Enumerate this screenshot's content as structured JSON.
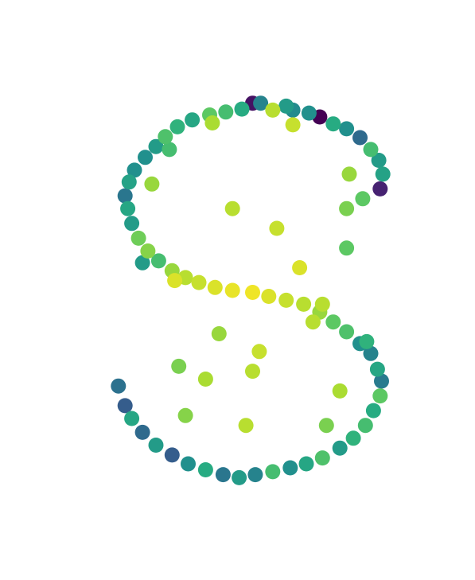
{
  "chart_data": {
    "type": "scatter",
    "title": "",
    "xlabel": "",
    "ylabel": "",
    "grid": false,
    "axes_visible": false,
    "legend": "none",
    "colormap": "viridis",
    "xlim": [
      -1.2,
      1.2
    ],
    "ylim": [
      -2.2,
      2.2
    ],
    "color_range": [
      0,
      1
    ],
    "points": [
      {
        "x": 0.0,
        "y": 1.92,
        "c": 0.05
      },
      {
        "x": 0.06,
        "y": 1.92,
        "c": 0.45
      },
      {
        "x": 0.25,
        "y": 1.89,
        "c": 0.55
      },
      {
        "x": 0.3,
        "y": 1.85,
        "c": 0.48
      },
      {
        "x": 0.42,
        "y": 1.82,
        "c": 0.5
      },
      {
        "x": 0.5,
        "y": 1.78,
        "c": 0.0
      },
      {
        "x": 0.6,
        "y": 1.71,
        "c": 0.62
      },
      {
        "x": 0.7,
        "y": 1.66,
        "c": 0.5
      },
      {
        "x": 0.8,
        "y": 1.57,
        "c": 0.35
      },
      {
        "x": 0.88,
        "y": 1.45,
        "c": 0.7
      },
      {
        "x": 0.94,
        "y": 1.34,
        "c": 0.55
      },
      {
        "x": 0.97,
        "y": 1.2,
        "c": 0.58
      },
      {
        "x": 0.95,
        "y": 1.05,
        "c": 0.1
      },
      {
        "x": 0.82,
        "y": 0.95,
        "c": 0.75
      },
      {
        "x": 0.7,
        "y": 0.85,
        "c": 0.8
      },
      {
        "x": -0.08,
        "y": 1.86,
        "c": 0.62
      },
      {
        "x": -0.2,
        "y": 1.83,
        "c": 0.7
      },
      {
        "x": -0.32,
        "y": 1.8,
        "c": 0.75
      },
      {
        "x": -0.45,
        "y": 1.75,
        "c": 0.6
      },
      {
        "x": -0.56,
        "y": 1.68,
        "c": 0.65
      },
      {
        "x": -0.65,
        "y": 1.58,
        "c": 0.72
      },
      {
        "x": -0.72,
        "y": 1.48,
        "c": 0.55
      },
      {
        "x": -0.8,
        "y": 1.37,
        "c": 0.5
      },
      {
        "x": -0.88,
        "y": 1.24,
        "c": 0.5
      },
      {
        "x": -0.92,
        "y": 1.12,
        "c": 0.58
      },
      {
        "x": -0.95,
        "y": 0.98,
        "c": 0.4
      },
      {
        "x": -0.93,
        "y": 0.85,
        "c": 0.6
      },
      {
        "x": -0.9,
        "y": 0.7,
        "c": 0.55
      },
      {
        "x": -0.85,
        "y": 0.55,
        "c": 0.78
      },
      {
        "x": -0.78,
        "y": 0.42,
        "c": 0.82
      },
      {
        "x": -0.7,
        "y": 0.32,
        "c": 0.7
      },
      {
        "x": -0.6,
        "y": 0.22,
        "c": 0.85
      },
      {
        "x": -0.5,
        "y": 0.15,
        "c": 0.9
      },
      {
        "x": -0.4,
        "y": 0.1,
        "c": 0.92
      },
      {
        "x": -0.28,
        "y": 0.05,
        "c": 0.95
      },
      {
        "x": -0.15,
        "y": 0.02,
        "c": 0.97
      },
      {
        "x": 0.0,
        "y": 0.0,
        "c": 0.98
      },
      {
        "x": 0.12,
        "y": -0.04,
        "c": 0.95
      },
      {
        "x": 0.25,
        "y": -0.08,
        "c": 0.92
      },
      {
        "x": 0.38,
        "y": -0.12,
        "c": 0.9
      },
      {
        "x": 0.5,
        "y": -0.2,
        "c": 0.85
      },
      {
        "x": 0.6,
        "y": -0.3,
        "c": 0.75
      },
      {
        "x": 0.7,
        "y": -0.4,
        "c": 0.72
      },
      {
        "x": 0.8,
        "y": -0.52,
        "c": 0.5
      },
      {
        "x": 0.88,
        "y": -0.62,
        "c": 0.45
      },
      {
        "x": 0.93,
        "y": -0.78,
        "c": 0.6
      },
      {
        "x": 0.96,
        "y": -0.9,
        "c": 0.42
      },
      {
        "x": 0.95,
        "y": -1.05,
        "c": 0.75
      },
      {
        "x": 0.9,
        "y": -1.2,
        "c": 0.62
      },
      {
        "x": 0.84,
        "y": -1.35,
        "c": 0.7
      },
      {
        "x": 0.75,
        "y": -1.48,
        "c": 0.65
      },
      {
        "x": 0.65,
        "y": -1.58,
        "c": 0.55
      },
      {
        "x": 0.52,
        "y": -1.68,
        "c": 0.72
      },
      {
        "x": 0.4,
        "y": -1.74,
        "c": 0.6
      },
      {
        "x": 0.28,
        "y": -1.78,
        "c": 0.5
      },
      {
        "x": 0.15,
        "y": -1.82,
        "c": 0.7
      },
      {
        "x": 0.02,
        "y": -1.85,
        "c": 0.45
      },
      {
        "x": -0.1,
        "y": -1.88,
        "c": 0.55
      },
      {
        "x": -0.22,
        "y": -1.85,
        "c": 0.4
      },
      {
        "x": -0.35,
        "y": -1.8,
        "c": 0.62
      },
      {
        "x": -0.48,
        "y": -1.74,
        "c": 0.5
      },
      {
        "x": -0.6,
        "y": -1.65,
        "c": 0.3
      },
      {
        "x": -0.72,
        "y": -1.55,
        "c": 0.55
      },
      {
        "x": -0.82,
        "y": -1.42,
        "c": 0.35
      },
      {
        "x": -0.9,
        "y": -1.28,
        "c": 0.6
      },
      {
        "x": -0.95,
        "y": -1.15,
        "c": 0.3
      },
      {
        "x": -1.0,
        "y": -0.95,
        "c": 0.38
      },
      {
        "x": 0.15,
        "y": 1.85,
        "c": 0.9
      },
      {
        "x": 0.3,
        "y": 1.7,
        "c": 0.92
      },
      {
        "x": -0.3,
        "y": 1.72,
        "c": 0.88
      },
      {
        "x": -0.62,
        "y": 1.45,
        "c": 0.7
      },
      {
        "x": -0.75,
        "y": 1.1,
        "c": 0.85
      },
      {
        "x": -0.15,
        "y": 0.85,
        "c": 0.9
      },
      {
        "x": 0.18,
        "y": 0.65,
        "c": 0.92
      },
      {
        "x": 0.7,
        "y": 0.45,
        "c": 0.75
      },
      {
        "x": 0.35,
        "y": 0.25,
        "c": 0.95
      },
      {
        "x": -0.25,
        "y": -0.42,
        "c": 0.85
      },
      {
        "x": 0.05,
        "y": -0.6,
        "c": 0.92
      },
      {
        "x": -0.55,
        "y": -0.75,
        "c": 0.8
      },
      {
        "x": -0.35,
        "y": -0.88,
        "c": 0.88
      },
      {
        "x": 0.0,
        "y": -0.8,
        "c": 0.9
      },
      {
        "x": -0.05,
        "y": -1.35,
        "c": 0.9
      },
      {
        "x": 0.65,
        "y": -1.0,
        "c": 0.88
      },
      {
        "x": 0.55,
        "y": -1.35,
        "c": 0.8
      },
      {
        "x": -0.5,
        "y": -1.25,
        "c": 0.82
      },
      {
        "x": 0.45,
        "y": -0.3,
        "c": 0.9
      },
      {
        "x": -0.82,
        "y": 0.3,
        "c": 0.55
      },
      {
        "x": 0.85,
        "y": -0.5,
        "c": 0.65
      },
      {
        "x": 0.72,
        "y": 1.2,
        "c": 0.85
      },
      {
        "x": -0.58,
        "y": 0.12,
        "c": 0.95
      },
      {
        "x": 0.52,
        "y": -0.12,
        "c": 0.9
      }
    ]
  }
}
